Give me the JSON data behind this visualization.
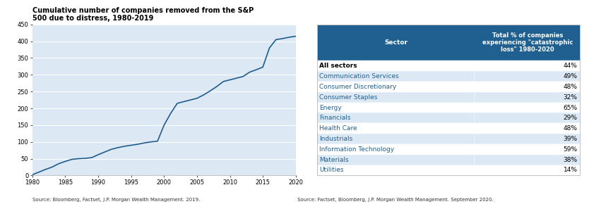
{
  "chart_title": "Cumulative number of companies removed from the S&P\n500 due to distress, 1980-2019",
  "chart_source": "Source: Bloomberg, Factset, J.P. Morgan Wealth Management. 2019.",
  "line_color": "#1f5c8b",
  "bg_color": "#dce9f5",
  "line_x": [
    1980,
    1981,
    1982,
    1983,
    1984,
    1985,
    1986,
    1987,
    1988,
    1989,
    1990,
    1991,
    1992,
    1993,
    1994,
    1995,
    1996,
    1997,
    1998,
    1999,
    2000,
    2001,
    2002,
    2003,
    2004,
    2005,
    2006,
    2007,
    2008,
    2009,
    2010,
    2011,
    2012,
    2013,
    2014,
    2015,
    2016,
    2017,
    2018,
    2019,
    2020
  ],
  "line_y": [
    2,
    10,
    18,
    25,
    35,
    42,
    48,
    50,
    51,
    53,
    62,
    70,
    78,
    83,
    87,
    90,
    93,
    97,
    100,
    102,
    150,
    185,
    215,
    220,
    225,
    230,
    240,
    252,
    265,
    280,
    285,
    290,
    295,
    308,
    315,
    323,
    380,
    405,
    408,
    412,
    415
  ],
  "ylim": [
    0,
    450
  ],
  "yticks": [
    0,
    50,
    100,
    150,
    200,
    250,
    300,
    350,
    400,
    450
  ],
  "xlim": [
    1980,
    2020
  ],
  "xticks": [
    1980,
    1985,
    1990,
    1995,
    2000,
    2005,
    2010,
    2015,
    2020
  ],
  "table_header_bg": "#1f6090",
  "table_header_text": "#ffffff",
  "table_col1_header": "Sector",
  "table_col2_header": "Total % of companies\nexperiencing \"catastrophic\nloss\" 1980-2020",
  "table_source": "Source: Factset, Bloomberg, J.P. Morgan Wealth Management. September 2020.",
  "table_rows": [
    [
      "All sectors",
      "44%"
    ],
    [
      "Communication Services",
      "49%"
    ],
    [
      "Consumer Discretionary",
      "48%"
    ],
    [
      "Consumer Staples",
      "32%"
    ],
    [
      "Energy",
      "65%"
    ],
    [
      "Financials",
      "29%"
    ],
    [
      "Health Care",
      "48%"
    ],
    [
      "Industrials",
      "39%"
    ],
    [
      "Information Technology",
      "59%"
    ],
    [
      "Materials",
      "38%"
    ],
    [
      "Utilities",
      "14%"
    ]
  ],
  "row_colors": [
    "#ffffff",
    "#dce9f5",
    "#ffffff",
    "#dce9f5",
    "#ffffff",
    "#dce9f5",
    "#ffffff",
    "#dce9f5",
    "#ffffff",
    "#dce9f5",
    "#ffffff"
  ],
  "all_sectors_color": "#000000",
  "sector_color": "#1f6090",
  "value_color": "#000000",
  "bold_rows": [
    0
  ]
}
